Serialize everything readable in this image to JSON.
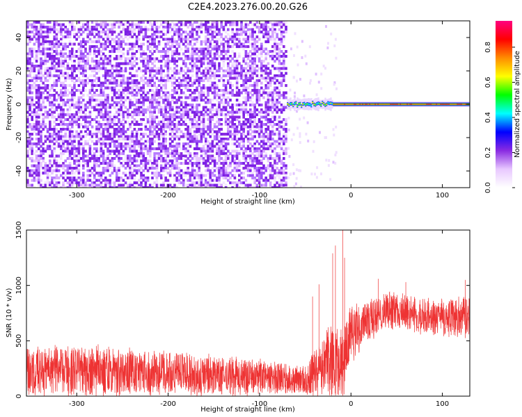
{
  "figure": {
    "title": "C2E4.2023.276.00.20.G26"
  },
  "chart_data": [
    {
      "type": "heatmap",
      "panel": "spectrogram",
      "xlabel": "Height of straight line (km)",
      "ylabel": "Frequency (Hz)",
      "xlim": [
        -355,
        130
      ],
      "ylim": [
        -50,
        50
      ],
      "x_ticks": [
        -300,
        -200,
        -100,
        0,
        100
      ],
      "x_tick_labels": [
        "-300",
        "-200",
        "-100",
        "0",
        "100"
      ],
      "y_ticks": [
        -40,
        -20,
        0,
        20,
        40
      ],
      "y_tick_labels": [
        "-40",
        "-20",
        "0",
        "20",
        "40"
      ],
      "colorbar": {
        "label": "Normalized spectral amplitude",
        "range": [
          0,
          0.95
        ],
        "ticks": [
          0.0,
          0.2,
          0.4,
          0.6,
          0.8
        ],
        "tick_labels": [
          "0.0",
          "0.2",
          "0.4",
          "0.6",
          "0.8"
        ],
        "colors": [
          "#ffffff",
          "#e8c8ff",
          "#8a2be2",
          "#0000ff",
          "#00ffff",
          "#00ff00",
          "#ffff00",
          "#ff8c00",
          "#ff0000",
          "#ff0080"
        ]
      },
      "regions": [
        {
          "x_range": [
            -355,
            -70
          ],
          "freq_range": [
            -50,
            50
          ],
          "amplitude": "low noise 0.0-0.1"
        },
        {
          "x_range": [
            -70,
            130
          ],
          "freq_range": [
            -5,
            3
          ],
          "amplitude": "signal near 0 Hz, peak ~0.9"
        }
      ],
      "signal_line_freq_hz": 0,
      "signal_onset_km": -70
    },
    {
      "type": "line",
      "panel": "snr",
      "xlabel": "Height of straight line (km)",
      "ylabel": "SNR (10 * v/v)",
      "xlim": [
        -355,
        130
      ],
      "ylim": [
        0,
        1500
      ],
      "x_ticks": [
        -300,
        -200,
        -100,
        0,
        100
      ],
      "x_tick_labels": [
        "-300",
        "-200",
        "-100",
        "0",
        "100"
      ],
      "y_ticks": [
        0,
        500,
        1000,
        1500
      ],
      "y_tick_labels": [
        "0",
        "500",
        "1000",
        "1500"
      ],
      "series": [
        {
          "color": "#ee3333",
          "trend": {
            "x": [
              -355,
              -300,
              -200,
              -150,
              -100,
              -50,
              -40,
              -20,
              -10,
              -5,
              0,
              20,
              40,
              60,
              80,
              100,
              130
            ],
            "mean": [
              230,
              230,
              210,
              190,
              170,
              150,
              200,
              330,
              250,
              380,
              550,
              690,
              780,
              760,
              720,
              700,
              720
            ],
            "spread": [
              270,
              260,
              240,
              220,
              180,
              150,
              260,
              450,
              420,
              380,
              300,
              220,
              200,
              190,
              190,
              200,
              230
            ]
          },
          "spikes": [
            {
              "x": -42,
              "y": 900
            },
            {
              "x": -35,
              "y": 1010
            },
            {
              "x": -20,
              "y": 1290
            },
            {
              "x": -17,
              "y": 1360
            },
            {
              "x": -9,
              "y": 1500
            },
            {
              "x": -7,
              "y": 1250
            },
            {
              "x": 30,
              "y": 1060
            },
            {
              "x": 60,
              "y": 1030
            },
            {
              "x": 125,
              "y": 1050
            }
          ]
        }
      ]
    }
  ]
}
